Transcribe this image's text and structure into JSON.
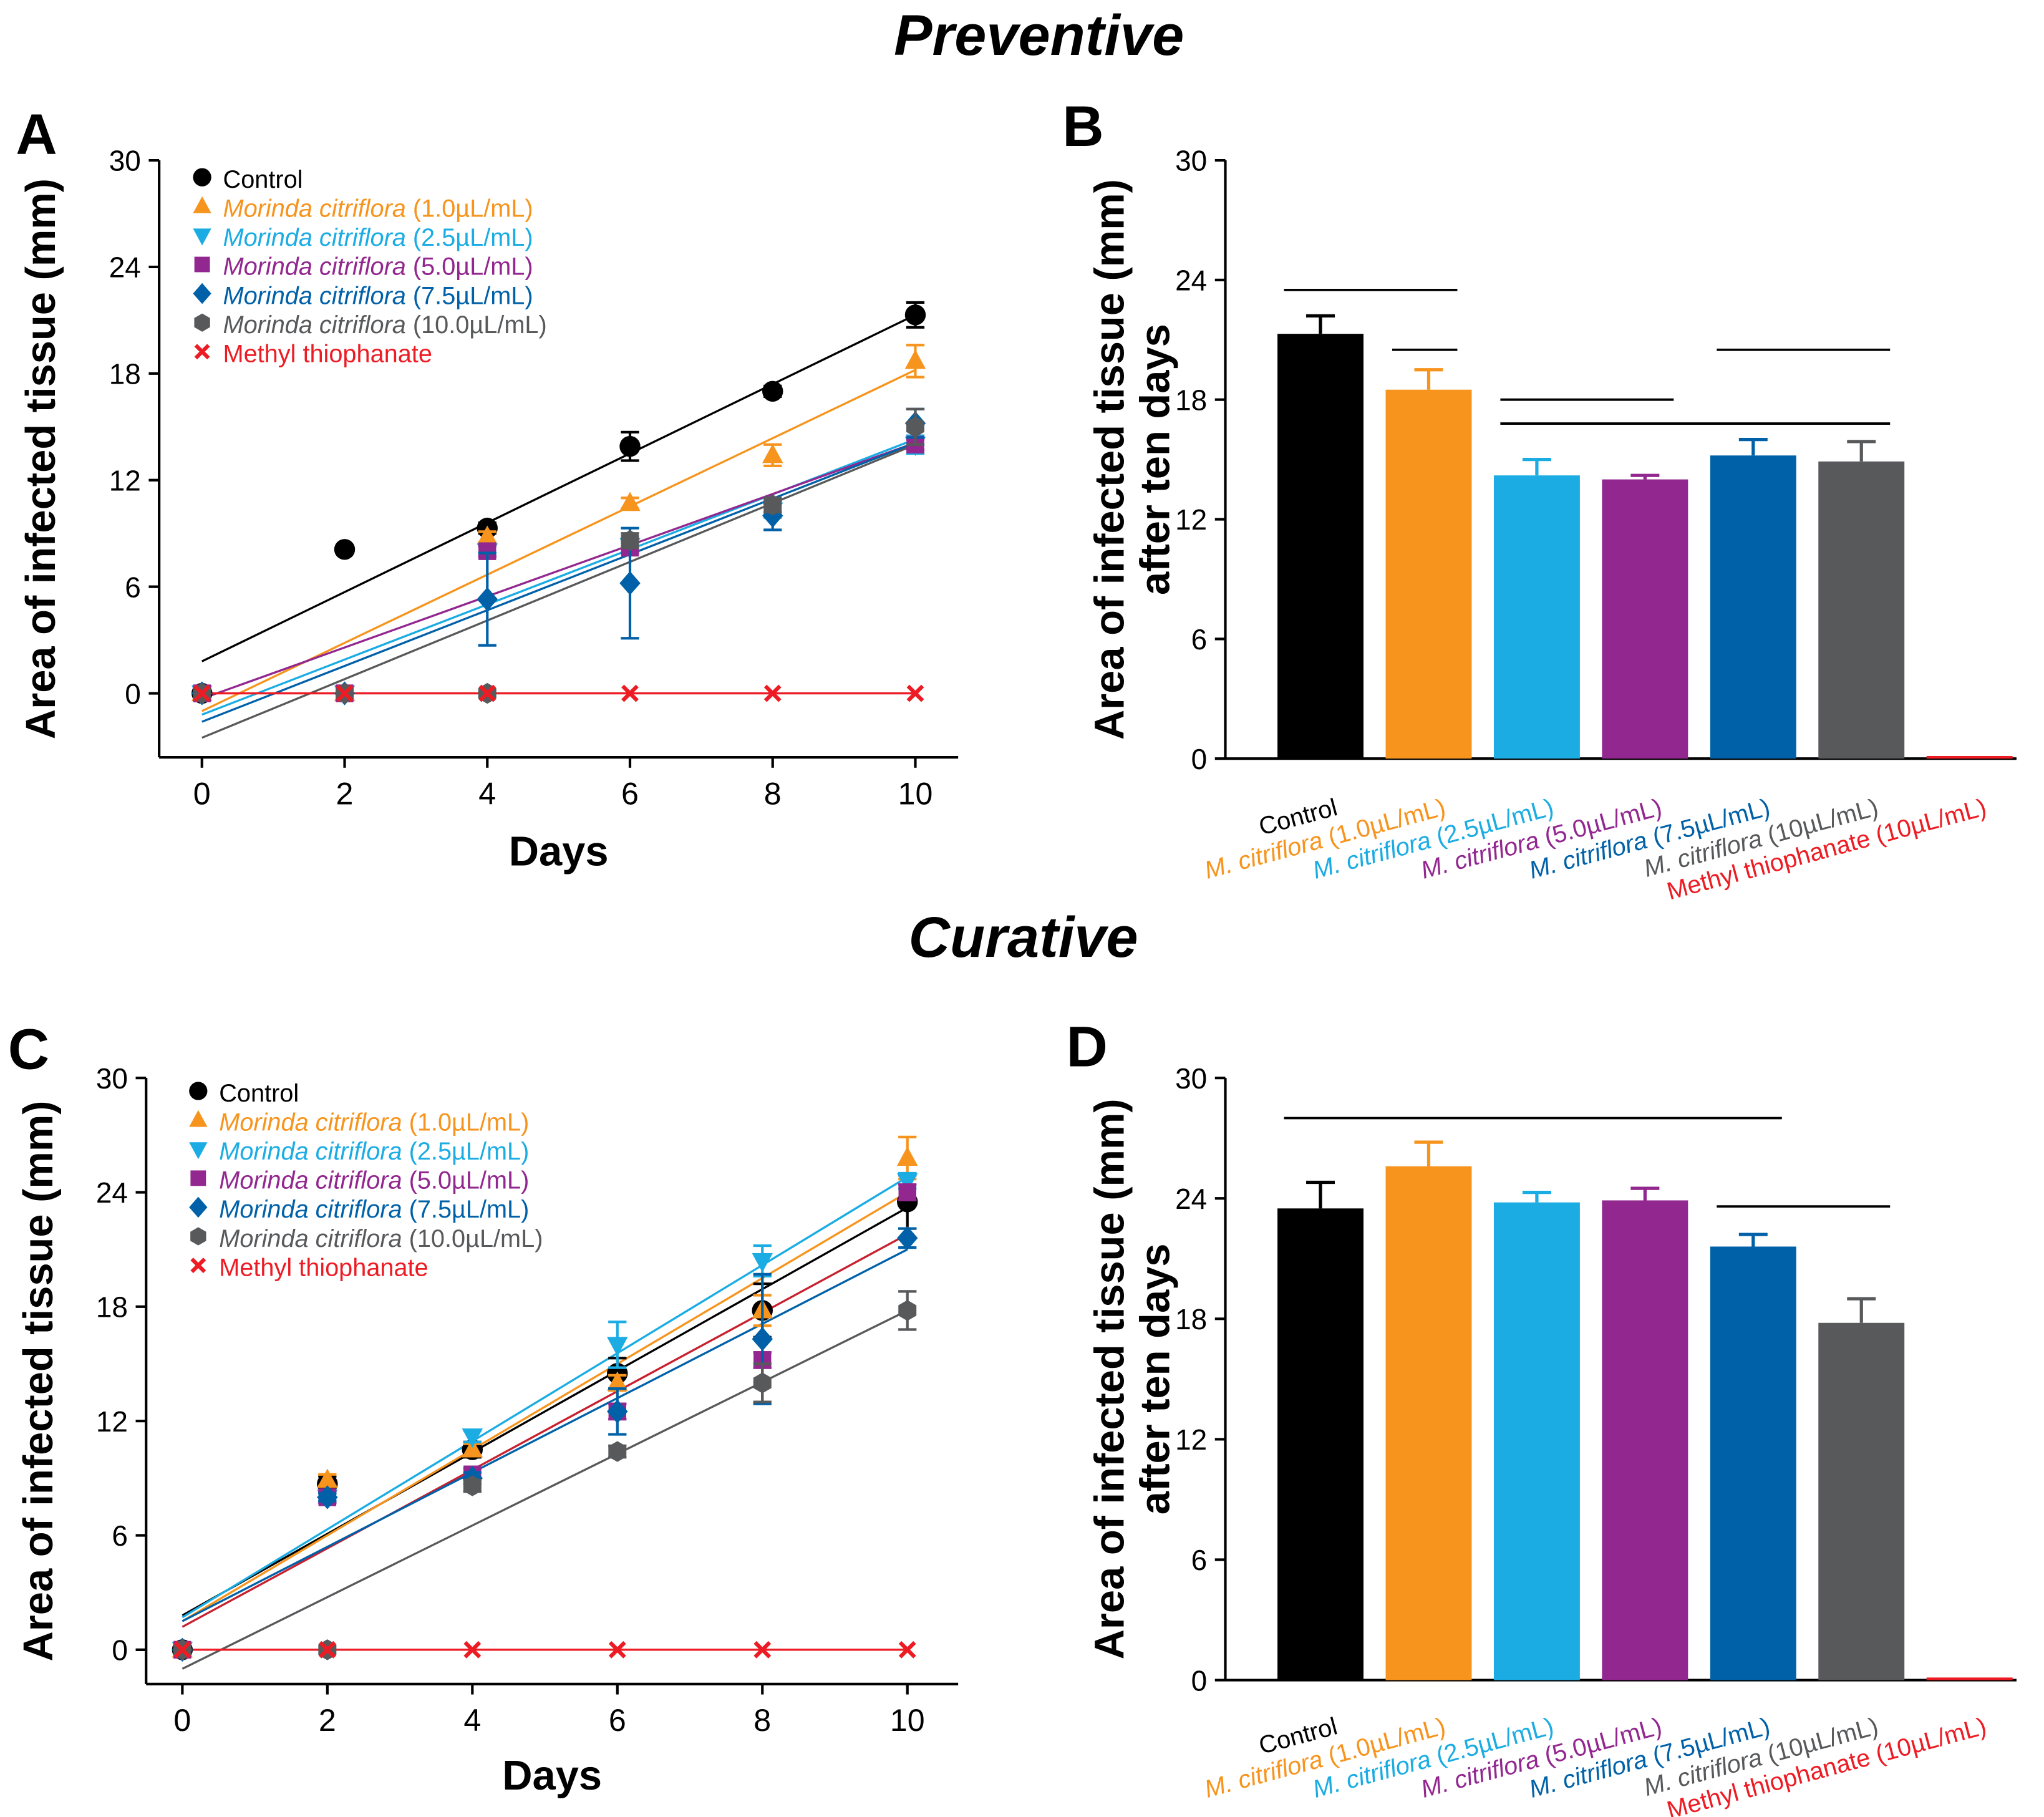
{
  "section_titles": {
    "top": "Preventive",
    "bottom": "Curative"
  },
  "colors": {
    "control": "#000000",
    "c1": "#f7941d",
    "c25": "#1aace3",
    "c5": "#92278f",
    "c75": "#0061a8",
    "c10": "#58595b",
    "mt": "#ed1c24",
    "c5_fit": "#c8202f"
  },
  "legend": [
    {
      "italic": "",
      "rest": "Control",
      "marker": "circle",
      "color_key": "control"
    },
    {
      "italic": "Morinda citriflora",
      "rest": " (1.0µL/mL)",
      "marker": "triangle-up",
      "color_key": "c1"
    },
    {
      "italic": "Morinda citriflora",
      "rest": " (2.5µL/mL)",
      "marker": "triangle-down",
      "color_key": "c25"
    },
    {
      "italic": "Morinda citriflora",
      "rest": " (5.0µL/mL)",
      "marker": "square",
      "color_key": "c5"
    },
    {
      "italic": "Morinda citriflora",
      "rest": " (7.5µL/mL)",
      "marker": "diamond",
      "color_key": "c75"
    },
    {
      "italic": "Morinda citriflora",
      "rest": " (10.0µL/mL)",
      "marker": "hexagon",
      "color_key": "c10"
    },
    {
      "italic": "",
      "rest": "Methyl thiophanate",
      "marker": "x",
      "color_key": "mt"
    }
  ],
  "bar_categories": [
    {
      "italic": "",
      "rest": "Control",
      "color_key": "control"
    },
    {
      "italic": "M. citriflora",
      "rest": " (1.0µL/mL)",
      "color_key": "c1"
    },
    {
      "italic": "M. citriflora",
      "rest": " (2.5µL/mL)",
      "color_key": "c25"
    },
    {
      "italic": "M. citriflora",
      "rest": " (5.0µL/mL)",
      "color_key": "c5"
    },
    {
      "italic": "M. citriflora",
      "rest": " (7.5µL/mL)",
      "color_key": "c75"
    },
    {
      "italic": "M. citriflora",
      "rest": " (10µL/mL)",
      "color_key": "c10"
    },
    {
      "italic": "",
      "rest": "Methyl thiophanate (10µL/mL)",
      "color_key": "mt"
    }
  ],
  "chart_data": [
    {
      "panel": "A",
      "type": "scatter",
      "xlabel": "Days",
      "ylabel": "Area of infected tissue (mm)",
      "x": [
        0,
        2,
        4,
        6,
        8,
        10
      ],
      "xticks": [
        0,
        2,
        4,
        6,
        8,
        10
      ],
      "yticks": [
        0,
        6,
        12,
        18,
        24,
        30
      ],
      "ylim": [
        -3.6,
        30
      ],
      "xlim": [
        -0.6,
        10.6
      ],
      "legend_position": "top-left",
      "trendlines": true,
      "series": [
        {
          "color_key": "control",
          "marker": "circle",
          "values": [
            0,
            8.1,
            9.3,
            13.9,
            17.0,
            21.3
          ],
          "errors": [
            0,
            0,
            0.3,
            0.8,
            0.3,
            0.7
          ],
          "fit": [
            1.8,
            21.3
          ]
        },
        {
          "color_key": "c1",
          "marker": "triangle-up",
          "values": [
            0,
            0,
            8.8,
            10.7,
            13.4,
            18.7
          ],
          "errors": [
            0,
            0,
            0.3,
            0.3,
            0.6,
            0.9
          ],
          "fit": [
            -1.0,
            18.2
          ]
        },
        {
          "color_key": "c25",
          "marker": "triangle-down",
          "values": [
            0,
            0,
            8.0,
            8.3,
            10.3,
            14.0
          ],
          "errors": [
            0,
            0,
            0.3,
            0.3,
            0.4,
            0.5
          ],
          "fit": [
            -1.2,
            14.3
          ]
        },
        {
          "color_key": "c5",
          "marker": "square",
          "values": [
            0,
            0,
            8.0,
            8.2,
            10.5,
            14.0
          ],
          "errors": [
            0,
            0,
            0.3,
            0.3,
            0.3,
            0.3
          ],
          "fit": [
            -0.3,
            14.1
          ]
        },
        {
          "color_key": "c75",
          "marker": "diamond",
          "values": [
            0,
            0,
            5.3,
            6.2,
            10.0,
            15.2
          ],
          "errors": [
            0,
            0,
            2.6,
            3.1,
            0.8,
            0.8
          ],
          "fit": [
            -1.6,
            14.1
          ]
        },
        {
          "color_key": "c10",
          "marker": "hexagon",
          "values": [
            0,
            0,
            0,
            8.6,
            10.6,
            15.0
          ],
          "errors": [
            0,
            0,
            0,
            0.4,
            0.4,
            1.0
          ],
          "fit": [
            -2.5,
            14.0
          ]
        },
        {
          "color_key": "mt",
          "marker": "x",
          "values": [
            0,
            0,
            0,
            0,
            0,
            0
          ],
          "errors": [
            0,
            0,
            0,
            0,
            0,
            0
          ],
          "fit": [
            0,
            0
          ]
        }
      ]
    },
    {
      "panel": "B",
      "type": "bar",
      "ylabel": "Area of infected tissue (mm)",
      "ylabel2": "after ten days",
      "yticks": [
        0,
        6,
        12,
        18,
        24,
        30
      ],
      "ylim": [
        0,
        30
      ],
      "values": [
        21.3,
        18.5,
        14.2,
        14.0,
        15.2,
        14.9,
        0
      ],
      "errors": [
        0.9,
        1.0,
        0.8,
        0.2,
        0.8,
        1.0,
        0
      ],
      "significance_lines": [
        {
          "from": 0,
          "to": 1,
          "y": 23.5
        },
        {
          "from": 1,
          "to": 1,
          "y": 20.5
        },
        {
          "from": 2,
          "to": 3,
          "y": 18.0
        },
        {
          "from": 2,
          "to": 5,
          "y": 16.8
        },
        {
          "from": 4,
          "to": 5,
          "y": 20.5
        }
      ]
    },
    {
      "panel": "C",
      "type": "scatter",
      "xlabel": "Days",
      "ylabel": "Area of infected tissue (mm)",
      "x": [
        0,
        2,
        4,
        6,
        8,
        10
      ],
      "xticks": [
        0,
        2,
        4,
        6,
        8,
        10
      ],
      "yticks": [
        0,
        6,
        12,
        18,
        24,
        30
      ],
      "ylim": [
        -1.8,
        30
      ],
      "xlim": [
        -0.5,
        10.7
      ],
      "legend_position": "top-left",
      "trendlines": true,
      "series": [
        {
          "color_key": "control",
          "marker": "circle",
          "values": [
            0,
            8.7,
            10.5,
            14.5,
            17.8,
            23.5
          ],
          "errors": [
            0,
            0.4,
            0.4,
            0.8,
            1.4,
            1.4
          ],
          "fit": [
            1.8,
            23.2
          ]
        },
        {
          "color_key": "c1",
          "marker": "triangle-up",
          "values": [
            0,
            8.9,
            10.5,
            14.0,
            17.8,
            25.8
          ],
          "errors": [
            0,
            0.3,
            0.3,
            0.4,
            0.8,
            1.1
          ],
          "fit": [
            1.5,
            24.0
          ]
        },
        {
          "color_key": "c25",
          "marker": "triangle-down",
          "values": [
            0,
            8.0,
            11.2,
            16.0,
            20.4,
            24.6
          ],
          "errors": [
            0,
            0.2,
            0.3,
            1.2,
            0.8,
            0.4
          ],
          "fit": [
            1.7,
            24.8
          ]
        },
        {
          "color_key": "c5",
          "marker": "square",
          "values": [
            0,
            8.0,
            9.2,
            12.5,
            15.2,
            24.0
          ],
          "errors": [
            0,
            0.3,
            0.3,
            0.4,
            0.4,
            0.4
          ],
          "fit": [
            1.2,
            21.8
          ]
        },
        {
          "color_key": "c75",
          "marker": "diamond",
          "values": [
            0,
            8.0,
            9.0,
            12.5,
            16.3,
            21.6
          ],
          "errors": [
            0,
            0.2,
            0.3,
            1.2,
            3.4,
            0.5
          ],
          "fit": [
            1.5,
            21.0
          ]
        },
        {
          "color_key": "c10",
          "marker": "hexagon",
          "values": [
            0,
            0,
            8.6,
            10.4,
            14.0,
            17.8
          ],
          "errors": [
            0,
            0,
            0.3,
            0.3,
            1.0,
            1.0
          ],
          "fit": [
            -1.0,
            17.8
          ]
        },
        {
          "color_key": "mt",
          "marker": "x",
          "values": [
            0,
            0,
            0,
            0,
            0,
            0
          ],
          "errors": [
            0,
            0,
            0,
            0,
            0,
            0
          ],
          "fit": [
            0,
            0
          ]
        }
      ]
    },
    {
      "panel": "D",
      "type": "bar",
      "ylabel": "Area of infected tissue (mm)",
      "ylabel2": "after ten days",
      "yticks": [
        0,
        6,
        12,
        18,
        24,
        30
      ],
      "ylim": [
        0,
        30
      ],
      "values": [
        23.5,
        25.6,
        23.8,
        23.9,
        21.6,
        17.8,
        0
      ],
      "errors": [
        1.3,
        1.2,
        0.5,
        0.6,
        0.6,
        1.2,
        0
      ],
      "significance_lines": [
        {
          "from": 0,
          "to": 4,
          "y": 28.0
        },
        {
          "from": 4,
          "to": 5,
          "y": 23.6
        }
      ]
    }
  ]
}
